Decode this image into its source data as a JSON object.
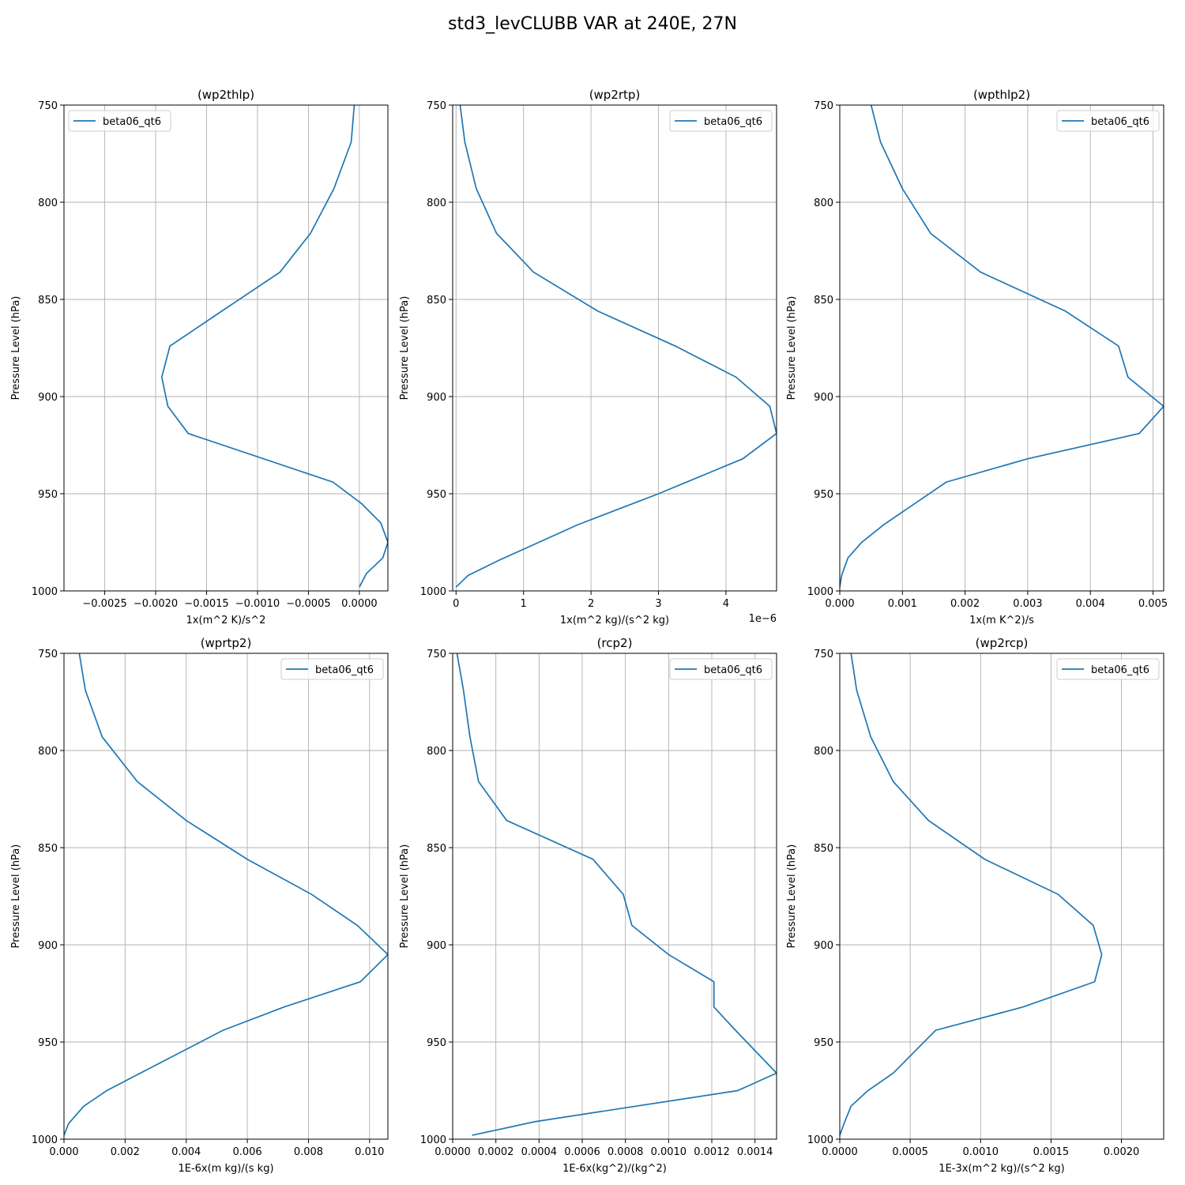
{
  "figure": {
    "title": "std3_levCLUBB VAR at 240E, 27N",
    "series_color": "#1f77b4"
  },
  "chart_data": [
    {
      "type": "line",
      "title": "(wp2thlp)",
      "xlabel": "1x(m^2 K)/s^2",
      "ylabel": "Pressure Level (hPa)",
      "xlim": [
        -0.0029,
        0.00028
      ],
      "ylim": [
        1000,
        750
      ],
      "xticks": [
        -0.0025,
        -0.002,
        -0.0015,
        -0.001,
        -0.0005,
        0.0
      ],
      "xticklabels": [
        "−0.0025",
        "−0.0020",
        "−0.0015",
        "−0.0010",
        "−0.0005",
        "0.0000"
      ],
      "yticks": [
        750,
        800,
        850,
        900,
        950,
        1000
      ],
      "yticklabels": [
        "750",
        "800",
        "850",
        "900",
        "950",
        "1000"
      ],
      "offset_label": "",
      "legend_loc": "upper left",
      "grid": true,
      "series": [
        {
          "name": "beta06_qt6",
          "x": [
            -5e-05,
            -8e-05,
            -0.00025,
            -0.00048,
            -0.00078,
            -0.00135,
            -0.00186,
            -0.00194,
            -0.00188,
            -0.00168,
            -0.00026,
            2e-05,
            0.00021,
            0.00028,
            0.00023,
            7e-05,
            0.0
          ],
          "y": [
            750,
            769,
            793,
            816,
            836,
            856,
            874,
            890,
            905,
            919,
            944,
            955,
            965,
            975,
            983,
            991,
            998
          ]
        }
      ]
    },
    {
      "type": "line",
      "title": "(wp2rtp)",
      "xlabel": "1x(m^2 kg)/(s^2 kg)",
      "ylabel": "Pressure Level (hPa)",
      "xlim": [
        -0.05,
        4.75
      ],
      "ylim": [
        1000,
        750
      ],
      "xticks": [
        0,
        1,
        2,
        3,
        4
      ],
      "xticklabels": [
        "0",
        "1",
        "2",
        "3",
        "4"
      ],
      "yticks": [
        750,
        800,
        850,
        900,
        950,
        1000
      ],
      "yticklabels": [
        "750",
        "800",
        "850",
        "900",
        "950",
        "1000"
      ],
      "offset_label": "1e−6",
      "legend_loc": "upper right",
      "grid": true,
      "series": [
        {
          "name": "beta06_qt6",
          "x": [
            0.06,
            0.13,
            0.3,
            0.6,
            1.15,
            2.1,
            3.25,
            4.15,
            4.65,
            4.75,
            4.25,
            3.0,
            1.8,
            0.65,
            0.18,
            0.0
          ],
          "y": [
            750,
            769,
            793,
            816,
            836,
            856,
            874,
            890,
            905,
            919,
            932,
            950,
            966,
            984,
            992,
            998
          ]
        }
      ]
    },
    {
      "type": "line",
      "title": "(wpthlp2)",
      "xlabel": "1x(m K^2)/s",
      "ylabel": "Pressure Level (hPa)",
      "xlim": [
        0.0,
        0.00517
      ],
      "ylim": [
        1000,
        750
      ],
      "xticks": [
        0.0,
        0.001,
        0.002,
        0.003,
        0.004,
        0.005
      ],
      "xticklabels": [
        "0.000",
        "0.001",
        "0.002",
        "0.003",
        "0.004",
        "0.005"
      ],
      "yticks": [
        750,
        800,
        850,
        900,
        950,
        1000
      ],
      "yticklabels": [
        "750",
        "800",
        "850",
        "900",
        "950",
        "1000"
      ],
      "offset_label": "",
      "legend_loc": "upper right",
      "grid": true,
      "series": [
        {
          "name": "beta06_qt6",
          "x": [
            0.0005,
            0.00065,
            0.001,
            0.00145,
            0.00225,
            0.0036,
            0.00445,
            0.0046,
            0.00517,
            0.00478,
            0.003,
            0.0017,
            0.0007,
            0.00035,
            0.00013,
            3e-05,
            0.0
          ],
          "y": [
            750,
            769,
            793,
            816,
            836,
            856,
            874,
            890,
            905,
            919,
            932,
            944,
            966,
            975,
            983,
            992,
            998
          ]
        }
      ]
    },
    {
      "type": "line",
      "title": "(wprtp2)",
      "xlabel": "1E-6x(m kg)/(s kg)",
      "ylabel": "Pressure Level (hPa)",
      "xlim": [
        0.0,
        0.0106
      ],
      "ylim": [
        1000,
        750
      ],
      "xticks": [
        0.0,
        0.002,
        0.004,
        0.006,
        0.008,
        0.01
      ],
      "xticklabels": [
        "0.000",
        "0.002",
        "0.004",
        "0.006",
        "0.008",
        "0.010"
      ],
      "yticks": [
        750,
        800,
        850,
        900,
        950,
        1000
      ],
      "yticklabels": [
        "750",
        "800",
        "850",
        "900",
        "950",
        "1000"
      ],
      "offset_label": "",
      "legend_loc": "upper right",
      "grid": true,
      "series": [
        {
          "name": "beta06_qt6",
          "x": [
            0.0005,
            0.0007,
            0.00125,
            0.0024,
            0.004,
            0.006,
            0.0081,
            0.0096,
            0.0106,
            0.0097,
            0.0072,
            0.0052,
            0.0025,
            0.0014,
            0.00065,
            0.00015,
            0.0
          ],
          "y": [
            750,
            769,
            793,
            816,
            836,
            856,
            874,
            890,
            905,
            919,
            932,
            944,
            966,
            975,
            983,
            992,
            998
          ]
        }
      ]
    },
    {
      "type": "line",
      "title": "(rcp2)",
      "xlabel": "1E-6x(kg^2)/(kg^2)",
      "ylabel": "Pressure Level (hPa)",
      "xlim": [
        0.0,
        0.0015
      ],
      "ylim": [
        1000,
        750
      ],
      "xticks": [
        0.0,
        0.0002,
        0.0004,
        0.0006,
        0.0008,
        0.001,
        0.0012,
        0.0014
      ],
      "xticklabels": [
        "0.0000",
        "0.0002",
        "0.0004",
        "0.0006",
        "0.0008",
        "0.0010",
        "0.0012",
        "0.0014"
      ],
      "yticks": [
        750,
        800,
        850,
        900,
        950,
        1000
      ],
      "yticklabels": [
        "750",
        "800",
        "850",
        "900",
        "950",
        "1000"
      ],
      "offset_label": "",
      "legend_loc": "upper right",
      "grid": true,
      "series": [
        {
          "name": "beta06_qt6",
          "x": [
            2e-05,
            5e-05,
            8e-05,
            0.00012,
            0.00025,
            0.00065,
            0.00079,
            0.00083,
            0.001,
            0.00121,
            0.00121,
            0.00131,
            0.0015,
            0.00132,
            0.00038,
            9e-05
          ],
          "y": [
            750,
            769,
            793,
            816,
            836,
            856,
            874,
            890,
            905,
            919,
            932,
            944,
            966,
            975,
            991,
            998
          ]
        }
      ]
    },
    {
      "type": "line",
      "title": "(wp2rcp)",
      "xlabel": "1E-3x(m^2 kg)/(s^2 kg)",
      "ylabel": "Pressure Level (hPa)",
      "xlim": [
        0.0,
        0.0023
      ],
      "ylim": [
        1000,
        750
      ],
      "xticks": [
        0.0,
        0.0005,
        0.001,
        0.0015,
        0.002
      ],
      "xticklabels": [
        "0.0000",
        "0.0005",
        "0.0010",
        "0.0015",
        "0.0020"
      ],
      "yticks": [
        750,
        800,
        850,
        900,
        950,
        1000
      ],
      "yticklabels": [
        "750",
        "800",
        "850",
        "900",
        "950",
        "1000"
      ],
      "offset_label": "",
      "legend_loc": "upper right",
      "grid": true,
      "series": [
        {
          "name": "beta06_qt6",
          "x": [
            8e-05,
            0.00012,
            0.00022,
            0.00038,
            0.00063,
            0.00103,
            0.00155,
            0.0018,
            0.00186,
            0.00181,
            0.0013,
            0.00068,
            0.00038,
            0.0002,
            8e-05,
            3e-05,
            0.0
          ],
          "y": [
            750,
            769,
            793,
            816,
            836,
            856,
            874,
            890,
            905,
            919,
            932,
            944,
            966,
            975,
            983,
            992,
            998
          ]
        }
      ]
    }
  ]
}
